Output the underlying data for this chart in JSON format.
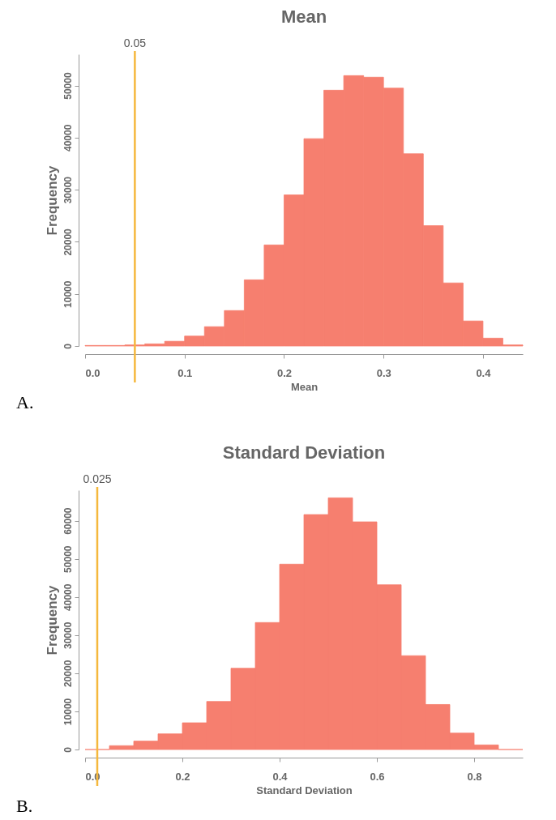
{
  "chart_data": [
    {
      "type": "histogram",
      "title": "Mean",
      "xlabel": "Mean",
      "ylabel": "Frequency",
      "color": "#f67f6f",
      "bins": [
        0,
        0.02,
        0.04,
        0.06,
        0.08,
        0.1,
        0.12,
        0.14,
        0.16,
        0.18,
        0.2,
        0.22,
        0.24,
        0.26,
        0.28,
        0.3,
        0.32,
        0.34,
        0.36,
        0.38,
        0.4,
        0.42,
        0.44
      ],
      "values": [
        100,
        100,
        200,
        400,
        900,
        1900,
        3700,
        6800,
        12700,
        19400,
        29000,
        39800,
        49100,
        51900,
        51600,
        49500,
        36900,
        23100,
        12100,
        4800,
        1500,
        200
      ],
      "xlim": [
        0,
        0.44
      ],
      "xticks": [
        {
          "value": 0,
          "label": "0.0"
        },
        0.1,
        0.2,
        0.3,
        0.4
      ],
      "ylim": [
        0,
        56000
      ],
      "yticks": [
        0,
        10000,
        20000,
        30000,
        40000,
        50000
      ],
      "grid": false,
      "ref_lines": [
        {
          "axis": "x",
          "value": 0.05,
          "label": "0.05",
          "color": "#f5b83d"
        }
      ],
      "annotations": [
        "A."
      ]
    },
    {
      "type": "histogram",
      "title": "Standard Deviation",
      "xlabel": "Standard Deviation",
      "ylabel": "Frequency",
      "color": "#f67f6f",
      "bins": [
        0,
        0.05,
        0.1,
        0.15,
        0.2,
        0.25,
        0.3,
        0.35,
        0.4,
        0.45,
        0.5,
        0.55,
        0.6,
        0.65,
        0.7,
        0.75,
        0.8,
        0.85,
        0.9
      ],
      "values": [
        0,
        1000,
        2200,
        4100,
        7000,
        12600,
        21300,
        33300,
        48600,
        61600,
        66000,
        59700,
        43200,
        24600,
        11800,
        4300,
        1200,
        0
      ],
      "xlim": [
        0,
        0.9
      ],
      "xticks": [
        {
          "value": 0,
          "label": "0.0"
        },
        0.2,
        0.4,
        0.6,
        0.8
      ],
      "ylim": [
        0,
        68000
      ],
      "yticks": [
        0,
        10000,
        20000,
        30000,
        40000,
        50000,
        60000
      ],
      "grid": false,
      "ref_lines": [
        {
          "axis": "x",
          "value": 0.025,
          "label": "0.025",
          "color": "#f5b83d"
        }
      ],
      "annotations": [
        "B."
      ]
    }
  ]
}
